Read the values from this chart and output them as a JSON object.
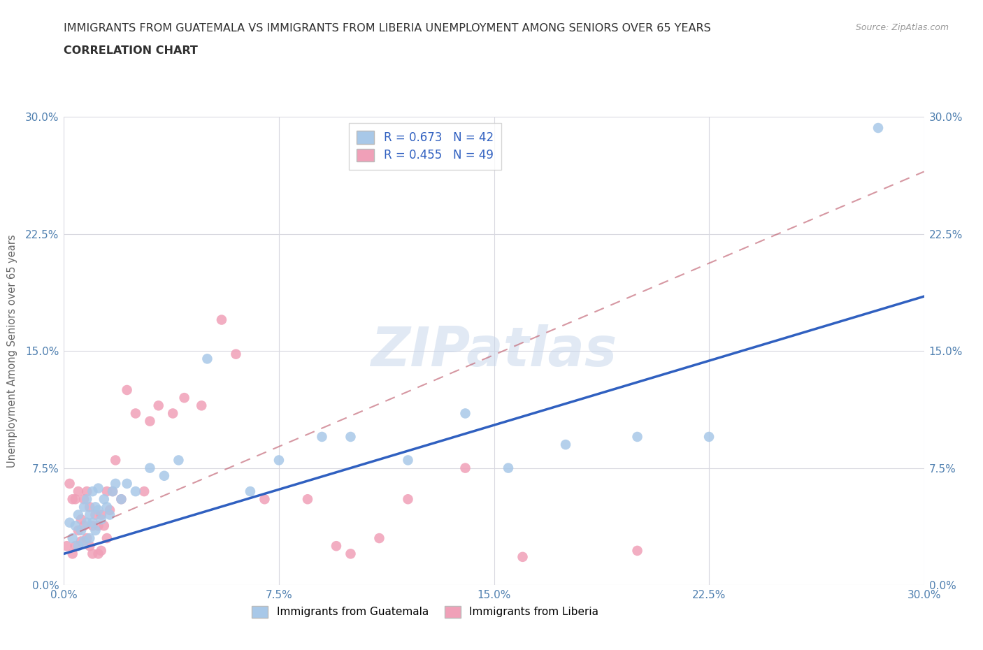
{
  "title_line1": "IMMIGRANTS FROM GUATEMALA VS IMMIGRANTS FROM LIBERIA UNEMPLOYMENT AMONG SENIORS OVER 65 YEARS",
  "title_line2": "CORRELATION CHART",
  "source": "Source: ZipAtlas.com",
  "ylabel": "Unemployment Among Seniors over 65 years",
  "xlim": [
    0.0,
    0.3
  ],
  "ylim": [
    0.0,
    0.3
  ],
  "xticks": [
    0.0,
    0.075,
    0.15,
    0.225,
    0.3
  ],
  "yticks": [
    0.0,
    0.075,
    0.15,
    0.225,
    0.3
  ],
  "xticklabels": [
    "0.0%",
    "7.5%",
    "15.0%",
    "22.5%",
    "30.0%"
  ],
  "yticklabels": [
    "0.0%",
    "7.5%",
    "15.0%",
    "22.5%",
    "30.0%"
  ],
  "watermark": "ZIPatlas",
  "legend_label1": "Immigrants from Guatemala",
  "legend_label2": "Immigrants from Liberia",
  "r1": 0.673,
  "n1": 42,
  "r2": 0.455,
  "n2": 49,
  "color1": "#a8c8e8",
  "color2": "#f0a0b8",
  "line_color1": "#3060c0",
  "line_color2": "#c06070",
  "background_color": "#ffffff",
  "grid_color": "#d8d8e0",
  "title_color": "#303030",
  "tick_color": "#5080b0",
  "blue_line_x0": 0.0,
  "blue_line_y0": 0.02,
  "blue_line_x1": 0.3,
  "blue_line_y1": 0.185,
  "pink_line_x0": 0.0,
  "pink_line_y0": 0.03,
  "pink_line_x1": 0.3,
  "pink_line_y1": 0.265,
  "guatemala_x": [
    0.002,
    0.003,
    0.004,
    0.005,
    0.005,
    0.006,
    0.007,
    0.007,
    0.008,
    0.008,
    0.009,
    0.009,
    0.01,
    0.01,
    0.011,
    0.011,
    0.012,
    0.012,
    0.013,
    0.014,
    0.015,
    0.016,
    0.017,
    0.018,
    0.02,
    0.022,
    0.025,
    0.03,
    0.035,
    0.04,
    0.05,
    0.065,
    0.075,
    0.09,
    0.1,
    0.12,
    0.14,
    0.155,
    0.175,
    0.2,
    0.225,
    0.284
  ],
  "guatemala_y": [
    0.04,
    0.03,
    0.038,
    0.025,
    0.045,
    0.035,
    0.05,
    0.028,
    0.04,
    0.055,
    0.045,
    0.03,
    0.04,
    0.06,
    0.05,
    0.035,
    0.048,
    0.062,
    0.042,
    0.055,
    0.05,
    0.045,
    0.06,
    0.065,
    0.055,
    0.065,
    0.06,
    0.075,
    0.07,
    0.08,
    0.145,
    0.06,
    0.08,
    0.095,
    0.095,
    0.08,
    0.11,
    0.075,
    0.09,
    0.095,
    0.095,
    0.293
  ],
  "liberia_x": [
    0.001,
    0.002,
    0.003,
    0.003,
    0.004,
    0.004,
    0.005,
    0.005,
    0.006,
    0.006,
    0.007,
    0.007,
    0.008,
    0.008,
    0.009,
    0.009,
    0.01,
    0.01,
    0.011,
    0.012,
    0.012,
    0.013,
    0.013,
    0.014,
    0.015,
    0.015,
    0.016,
    0.017,
    0.018,
    0.02,
    0.022,
    0.025,
    0.028,
    0.03,
    0.033,
    0.038,
    0.042,
    0.048,
    0.055,
    0.06,
    0.07,
    0.085,
    0.095,
    0.1,
    0.11,
    0.12,
    0.14,
    0.16,
    0.2
  ],
  "liberia_y": [
    0.025,
    0.065,
    0.055,
    0.02,
    0.025,
    0.055,
    0.035,
    0.06,
    0.028,
    0.042,
    0.038,
    0.055,
    0.03,
    0.06,
    0.05,
    0.025,
    0.038,
    0.02,
    0.045,
    0.038,
    0.02,
    0.045,
    0.022,
    0.038,
    0.03,
    0.06,
    0.048,
    0.06,
    0.08,
    0.055,
    0.125,
    0.11,
    0.06,
    0.105,
    0.115,
    0.11,
    0.12,
    0.115,
    0.17,
    0.148,
    0.055,
    0.055,
    0.025,
    0.02,
    0.03,
    0.055,
    0.075,
    0.018,
    0.022
  ]
}
